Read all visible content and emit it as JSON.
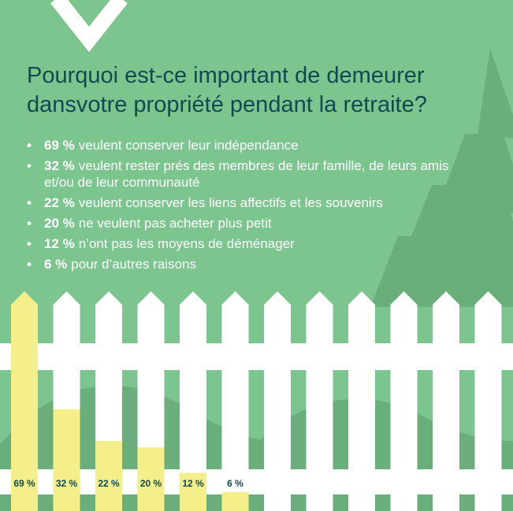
{
  "title": "Pourquoi est-ce important de demeurer dansvotre propriété pendant la retraite?",
  "colors": {
    "background": "#7cc58f",
    "tree": "#6aae7c",
    "fence": "#ffffff",
    "bar": "#f4ef8b",
    "title": "#0f4a50",
    "bar_label": "#0f4a50"
  },
  "bullets": [
    {
      "pct": "69 %",
      "text": "veulent conserver leur indépendance"
    },
    {
      "pct": "32 %",
      "text": "veulent rester prés des membres de leur famille, de leurs amis et/ou de leur communauté"
    },
    {
      "pct": "22 %",
      "text": "veulent conserver les liens affectifs et les souvenirs"
    },
    {
      "pct": "20 %",
      "text": "ne veulent pas acheter plus petit"
    },
    {
      "pct": "12 %",
      "text": "n’ont pas les moyens de déménager"
    },
    {
      "pct": "6 %",
      "text": "pour d’autres raisons"
    }
  ],
  "chart_data": {
    "type": "bar",
    "title": "Pourquoi est-ce important de demeurer dansvotre propriété pendant la retraite?",
    "categories": [
      "veulent conserver leur indépendance",
      "veulent rester prés des membres de leur famille, de leurs amis et/ou de leur communauté",
      "veulent conserver les liens affectifs et les souvenirs",
      "ne veulent pas acheter plus petit",
      "n’ont pas les moyens de déménager",
      "pour d’autres raisons"
    ],
    "values": [
      69,
      32,
      22,
      20,
      12,
      6
    ],
    "value_labels": [
      "69 %",
      "32 %",
      "22 %",
      "20 %",
      "12 %",
      "6 %"
    ],
    "ylim": [
      0,
      69
    ],
    "grid": false,
    "legend": "none"
  }
}
